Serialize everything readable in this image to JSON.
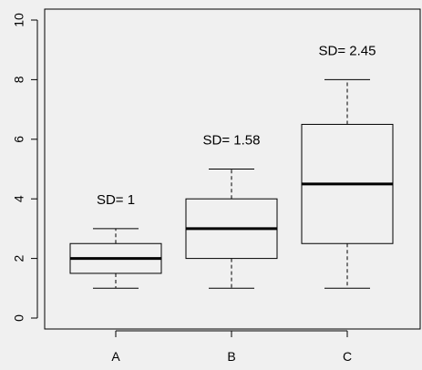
{
  "chart_data": {
    "type": "boxplot",
    "categories": [
      "A",
      "B",
      "C"
    ],
    "boxes": [
      {
        "name": "A",
        "min": 1,
        "q1": 1.5,
        "median": 2,
        "q3": 2.5,
        "max": 3,
        "annotation": "SD= 1"
      },
      {
        "name": "B",
        "min": 1,
        "q1": 2,
        "median": 3,
        "q3": 4,
        "max": 5,
        "annotation": "SD= 1.58"
      },
      {
        "name": "C",
        "min": 1,
        "q1": 2.5,
        "median": 4.5,
        "q3": 6.5,
        "max": 8,
        "annotation": "SD= 2.45"
      }
    ],
    "ylim": [
      0,
      10
    ],
    "yticks": [
      0,
      2,
      4,
      6,
      8,
      10
    ],
    "grid": false,
    "title": "",
    "xlabel": "",
    "ylabel": ""
  }
}
